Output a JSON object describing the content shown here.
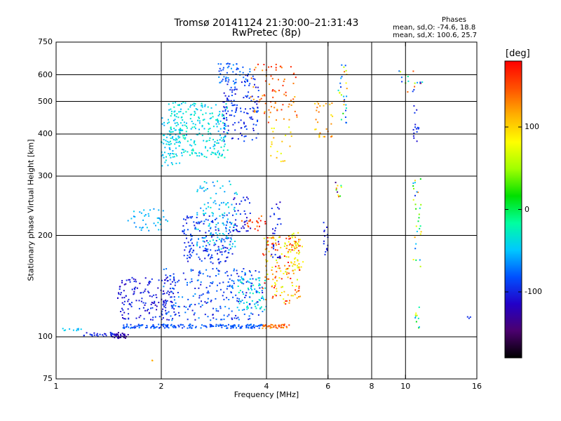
{
  "title_line1": "Tromsø 20141124 21:30:00–21:31:43",
  "title_line2": "RwPretec (8p)",
  "stats": {
    "heading": "Phases",
    "line1": "mean, sd,O: -74.6, 18.8",
    "line2": "mean, sd,X: 100.6, 25.7"
  },
  "colorbar": {
    "unit": "[deg]",
    "min": -180,
    "max": 180,
    "ticks": [
      {
        "value": 100,
        "label": "100"
      },
      {
        "value": 0,
        "label": "0"
      },
      {
        "value": -100,
        "label": "-100"
      }
    ],
    "colors": [
      "#000000",
      "#4b006e",
      "#2200c8",
      "#0050ff",
      "#00c8ff",
      "#00ffa0",
      "#00e000",
      "#a0ff00",
      "#ffff00",
      "#ffb000",
      "#ff5000",
      "#ff0000"
    ]
  },
  "chart_data": {
    "type": "scatter",
    "title": "Tromsø 20141124 21:30:00–21:31:43",
    "subtitle": "RwPretec (8p)",
    "xlabel": "Frequency [MHz]",
    "ylabel": "Stationary phase Virtual Height [km]",
    "x_scale": "log",
    "y_scale": "log",
    "xlim": [
      1,
      16
    ],
    "ylim": [
      75,
      750
    ],
    "x_ticks": [
      {
        "value": 1,
        "label": "1"
      },
      {
        "value": 2,
        "label": "2"
      },
      {
        "value": 4,
        "label": "4"
      },
      {
        "value": 6,
        "label": "6"
      },
      {
        "value": 8,
        "label": "8"
      },
      {
        "value": 10,
        "label": "10"
      },
      {
        "value": 16,
        "label": "16"
      }
    ],
    "y_ticks": [
      {
        "value": 75,
        "label": "75"
      },
      {
        "value": 100,
        "label": "100"
      },
      {
        "value": 200,
        "label": "200"
      },
      {
        "value": 300,
        "label": "300"
      },
      {
        "value": 400,
        "label": "400"
      },
      {
        "value": 500,
        "label": "500"
      },
      {
        "value": 600,
        "label": "600"
      },
      {
        "value": 750,
        "label": "750"
      }
    ],
    "x_gridlines": [
      2,
      4,
      6,
      8,
      10
    ],
    "y_gridlines": [
      100,
      200,
      300,
      400,
      500,
      600
    ],
    "color_scale": "phase [deg], -180 to 180",
    "clusters": [
      {
        "f": [
          1.02,
          1.18
        ],
        "h": [
          104,
          106
        ],
        "phase": [
          -60,
          -40
        ],
        "n": 10
      },
      {
        "f": [
          1.2,
          1.5
        ],
        "h": [
          100,
          103
        ],
        "phase": [
          -110,
          -90
        ],
        "n": 30
      },
      {
        "f": [
          1.45,
          1.62
        ],
        "h": [
          99,
          103
        ],
        "phase": [
          -140,
          -110
        ],
        "n": 30
      },
      {
        "f": [
          1.55,
          3.9
        ],
        "h": [
          106,
          109
        ],
        "phase": [
          -95,
          -70
        ],
        "n": 180
      },
      {
        "f": [
          3.9,
          4.7
        ],
        "h": [
          106,
          109
        ],
        "phase": [
          120,
          160
        ],
        "n": 40
      },
      {
        "f": [
          1.5,
          2.2
        ],
        "h": [
          112,
          150
        ],
        "phase": [
          -120,
          -90
        ],
        "n": 160
      },
      {
        "f": [
          2.0,
          3.9
        ],
        "h": [
          112,
          160
        ],
        "phase": [
          -110,
          -60
        ],
        "n": 250
      },
      {
        "f": [
          3.3,
          4.0
        ],
        "h": [
          120,
          150
        ],
        "phase": [
          -60,
          -20
        ],
        "n": 60
      },
      {
        "f": [
          3.9,
          5.0
        ],
        "h": [
          125,
          200
        ],
        "phase": [
          60,
          180
        ],
        "n": 170
      },
      {
        "f": [
          4.6,
          5.1
        ],
        "h": [
          160,
          205
        ],
        "phase": [
          70,
          110
        ],
        "n": 30
      },
      {
        "f": [
          1.6,
          2.1
        ],
        "h": [
          205,
          240
        ],
        "phase": [
          -70,
          -40
        ],
        "n": 40
      },
      {
        "f": [
          2.3,
          3.2
        ],
        "h": [
          165,
          230
        ],
        "phase": [
          -110,
          -80
        ],
        "n": 160
      },
      {
        "f": [
          2.5,
          3.3
        ],
        "h": [
          180,
          290
        ],
        "phase": [
          -70,
          -30
        ],
        "n": 120
      },
      {
        "f": [
          3.2,
          3.6
        ],
        "h": [
          205,
          260
        ],
        "phase": [
          -120,
          -90
        ],
        "n": 40
      },
      {
        "f": [
          3.4,
          4.0
        ],
        "h": [
          205,
          230
        ],
        "phase": [
          130,
          180
        ],
        "n": 20
      },
      {
        "f": [
          4.1,
          4.4
        ],
        "h": [
          170,
          260
        ],
        "phase": [
          -120,
          -90
        ],
        "n": 30
      },
      {
        "f": [
          2.0,
          2.3
        ],
        "h": [
          320,
          450
        ],
        "phase": [
          -60,
          -30
        ],
        "n": 70
      },
      {
        "f": [
          2.1,
          3.1
        ],
        "h": [
          340,
          500
        ],
        "phase": [
          -60,
          -20
        ],
        "n": 250
      },
      {
        "f": [
          3.0,
          3.8
        ],
        "h": [
          380,
          600
        ],
        "phase": [
          -110,
          -80
        ],
        "n": 140
      },
      {
        "f": [
          2.9,
          3.6
        ],
        "h": [
          560,
          650
        ],
        "phase": [
          -90,
          -60
        ],
        "n": 50
      },
      {
        "f": [
          3.6,
          4.9
        ],
        "h": [
          430,
          650
        ],
        "phase": [
          110,
          170
        ],
        "n": 80
      },
      {
        "f": [
          4.1,
          4.8
        ],
        "h": [
          330,
          420
        ],
        "phase": [
          70,
          120
        ],
        "n": 20
      },
      {
        "f": [
          5.5,
          6.2
        ],
        "h": [
          390,
          500
        ],
        "phase": [
          90,
          140
        ],
        "n": 30
      },
      {
        "f": [
          5.8,
          6.0
        ],
        "h": [
          175,
          230
        ],
        "phase": [
          -110,
          -90
        ],
        "n": 15
      },
      {
        "f": [
          6.4,
          6.8
        ],
        "h": [
          430,
          650
        ],
        "phase": [
          -120,
          140
        ],
        "n": 30
      },
      {
        "f": [
          6.3,
          6.6
        ],
        "h": [
          260,
          290
        ],
        "phase": [
          -150,
          150
        ],
        "n": 10
      },
      {
        "f": [
          9.4,
          11.2
        ],
        "h": [
          520,
          620
        ],
        "phase": [
          -110,
          150
        ],
        "n": 20
      },
      {
        "f": [
          10.5,
          11.0
        ],
        "h": [
          380,
          500
        ],
        "phase": [
          -110,
          -90
        ],
        "n": 15
      },
      {
        "f": [
          10.5,
          11.1
        ],
        "h": [
          160,
          300
        ],
        "phase": [
          -110,
          130
        ],
        "n": 30
      },
      {
        "f": [
          10.6,
          11.0
        ],
        "h": [
          105,
          125
        ],
        "phase": [
          -100,
          100
        ],
        "n": 10
      },
      {
        "f": [
          15.0,
          15.6
        ],
        "h": [
          113,
          115
        ],
        "phase": [
          -110,
          -90
        ],
        "n": 3
      },
      {
        "f": [
          1.85,
          1.9
        ],
        "h": [
          84,
          86
        ],
        "phase": [
          110,
          130
        ],
        "n": 2
      }
    ]
  }
}
